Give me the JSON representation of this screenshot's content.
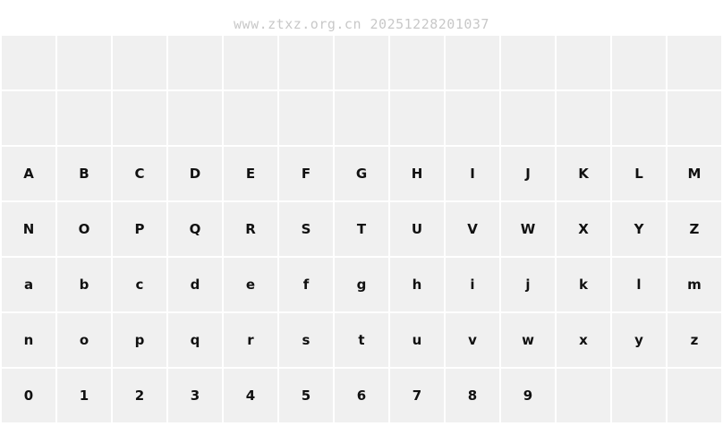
{
  "header": {
    "watermark": "www.ztxz.org.cn 20251228201037"
  },
  "colors": {
    "page_bg": "#ffffff",
    "cell_bg": "#f0f0f0",
    "gap": "#ffffff",
    "glyph": "#111111",
    "watermark_text": "#c8c8c8"
  },
  "grid": {
    "columns": 13,
    "rows": [
      {
        "cells": [
          "",
          "",
          "",
          "",
          "",
          "",
          "",
          "",
          "",
          "",
          "",
          "",
          ""
        ]
      },
      {
        "cells": [
          "",
          "",
          "",
          "",
          "",
          "",
          "",
          "",
          "",
          "",
          "",
          "",
          ""
        ]
      },
      {
        "cells": [
          "A",
          "B",
          "C",
          "D",
          "E",
          "F",
          "G",
          "H",
          "I",
          "J",
          "K",
          "L",
          "M"
        ]
      },
      {
        "cells": [
          "N",
          "O",
          "P",
          "Q",
          "R",
          "S",
          "T",
          "U",
          "V",
          "W",
          "X",
          "Y",
          "Z"
        ]
      },
      {
        "cells": [
          "a",
          "b",
          "c",
          "d",
          "e",
          "f",
          "g",
          "h",
          "i",
          "j",
          "k",
          "l",
          "m"
        ]
      },
      {
        "cells": [
          "n",
          "o",
          "p",
          "q",
          "r",
          "s",
          "t",
          "u",
          "v",
          "w",
          "x",
          "y",
          "z"
        ]
      },
      {
        "cells": [
          "0",
          "1",
          "2",
          "3",
          "4",
          "5",
          "6",
          "7",
          "8",
          "9",
          "",
          "",
          ""
        ]
      }
    ]
  }
}
